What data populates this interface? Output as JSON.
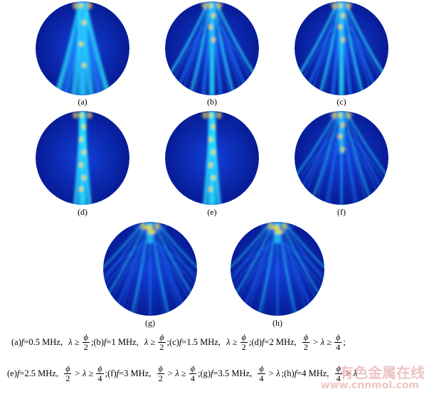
{
  "figure": {
    "panels": [
      {
        "id": "a",
        "label": "(a)",
        "pattern": "narrow"
      },
      {
        "id": "b",
        "label": "(b)",
        "pattern": "mixed"
      },
      {
        "id": "c",
        "label": "(c)",
        "pattern": "mixed"
      },
      {
        "id": "d",
        "label": "(d)",
        "pattern": "beam"
      },
      {
        "id": "e",
        "label": "(e)",
        "pattern": "beam"
      },
      {
        "id": "f",
        "label": "(f)",
        "pattern": "fan"
      },
      {
        "id": "g",
        "label": "(g)",
        "pattern": "wide"
      },
      {
        "id": "h",
        "label": "(h)",
        "pattern": "wide"
      }
    ],
    "colors": {
      "background": "#0a1fb0",
      "deep": "#061890",
      "mid": "#1e7fff",
      "cyan": "#29f0ff",
      "hot": "#ffe23a"
    }
  },
  "caption": {
    "line1": [
      {
        "prefix": "(a) ",
        "f": "f",
        "eq": "=0.5 MHz,",
        "rel": "λ ≥",
        "num": "ϕ",
        "den": "2",
        "end": ";"
      },
      {
        "prefix": " (b) ",
        "f": "f",
        "eq": "=1 MHz,",
        "rel": "λ ≥",
        "num": "ϕ",
        "den": "2",
        "end": ";"
      },
      {
        "prefix": " (c) ",
        "f": "f",
        "eq": "=1.5 MHz,",
        "rel": "λ ≥",
        "num": "ϕ",
        "den": "2",
        "end": ";"
      },
      {
        "prefix": " (d) ",
        "f": "f",
        "eq": "=2 MHz,",
        "num": "ϕ",
        "den": "2",
        "rel2": "> λ ≥",
        "num2": "ϕ",
        "den2": "4",
        "end": ";"
      }
    ],
    "line2": [
      {
        "prefix": "(e) ",
        "f": "f",
        "eq": " =2.5 MHz,",
        "num": "ϕ",
        "den": "2",
        "rel2": "> λ ≥",
        "num2": "ϕ",
        "den2": "4",
        "end": ";"
      },
      {
        "prefix": " (f) ",
        "f": "f",
        "eq": "=3 MHz,",
        "num": "ϕ",
        "den": "2",
        "rel2": "> λ ≥",
        "num2": "ϕ",
        "den2": "4",
        "end": ";"
      },
      {
        "prefix": " (g) ",
        "f": "f",
        "eq": "=3.5 MHz,",
        "num": "ϕ",
        "den": "4",
        "rel2": "> λ",
        "end": ";"
      },
      {
        "prefix": " (h) ",
        "f": "f",
        "eq": "=4 MHz,",
        "num": "ϕ",
        "den": "4",
        "rel2": "> λ",
        "end": ""
      }
    ]
  },
  "watermark": {
    "line1": "有色金属在线",
    "line2": "www.cnnmol.com"
  }
}
